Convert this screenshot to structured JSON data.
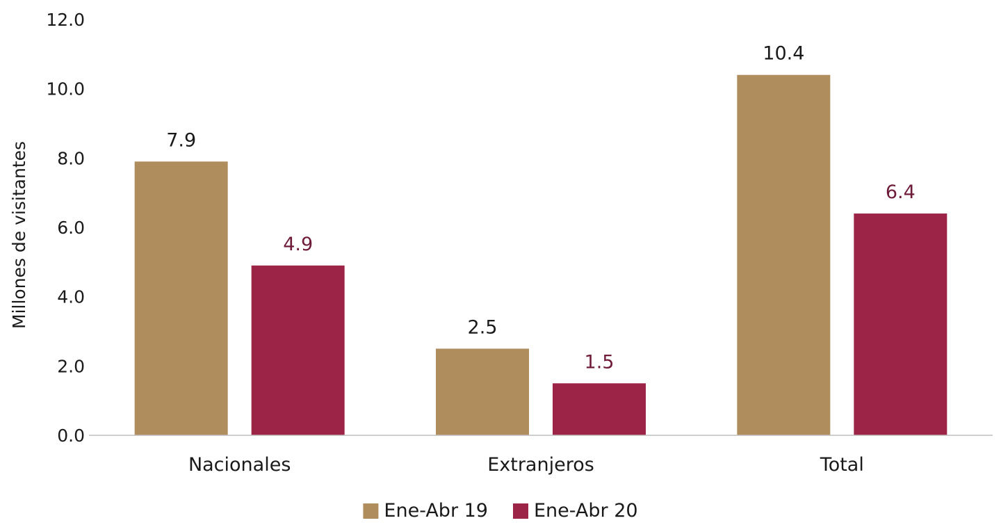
{
  "chart_data": {
    "type": "bar",
    "title": "",
    "xlabel": "",
    "ylabel": "Millones de visitantes",
    "ylim": [
      0,
      12
    ],
    "yticks": [
      0,
      2,
      4,
      6,
      8,
      10,
      12
    ],
    "ytick_labels": [
      "0.0",
      "2.0",
      "4.0",
      "6.0",
      "8.0",
      "10.0",
      "12.0"
    ],
    "categories": [
      "Nacionales",
      "Extranjeros",
      "Total"
    ],
    "series": [
      {
        "name": "Ene-Abr 19",
        "values": [
          7.9,
          2.5,
          10.4
        ],
        "labels": [
          "7.9",
          "2.5",
          "10.4"
        ],
        "color": "#B08D5C",
        "label_color": "#1a1a1a"
      },
      {
        "name": "Ene-Abr 20",
        "values": [
          4.9,
          1.5,
          6.4
        ],
        "labels": [
          "4.9",
          "1.5",
          "6.4"
        ],
        "color": "#9C2447",
        "label_color": "#6E1B3A"
      }
    ],
    "grid": false,
    "legend": "bottom-center",
    "axis_color": "#BFBFBF"
  }
}
